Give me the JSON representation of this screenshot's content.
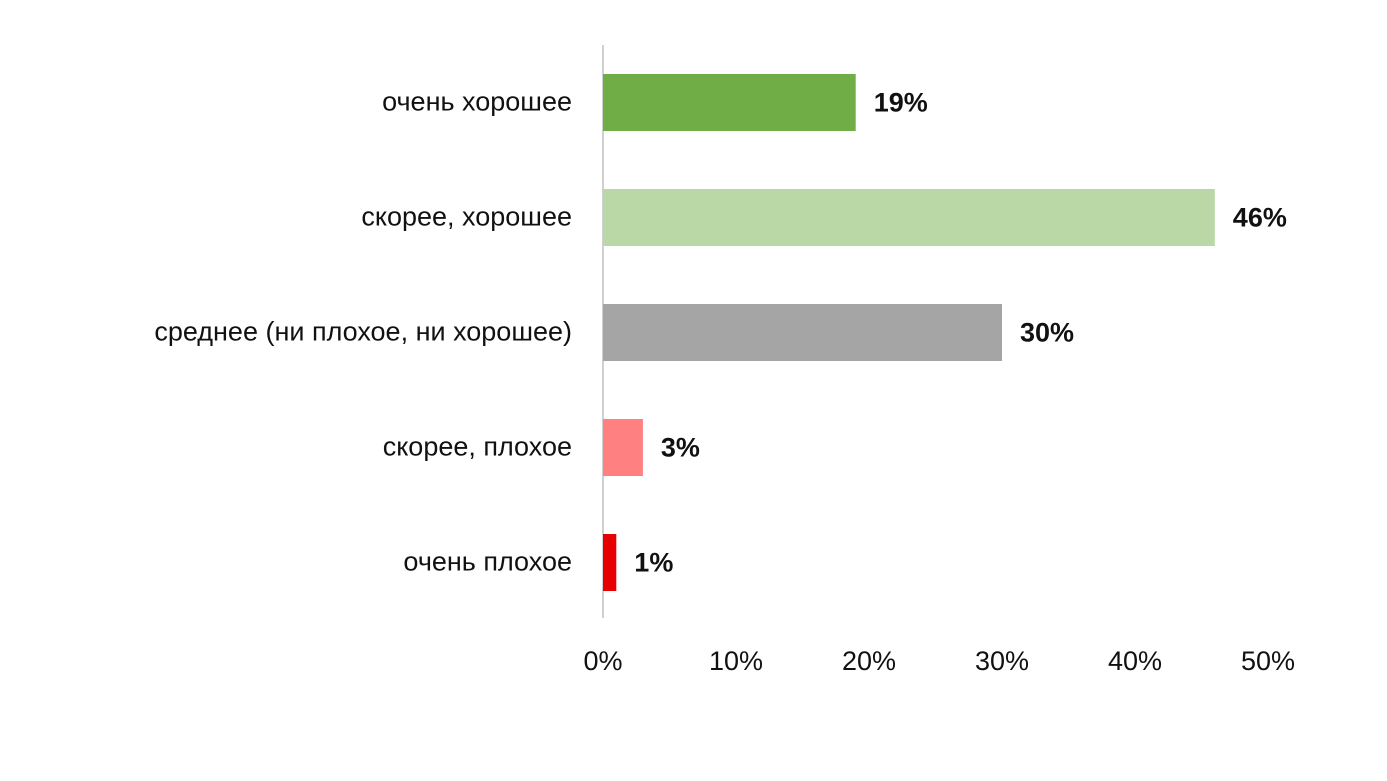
{
  "chart_data": {
    "type": "hbar",
    "categories": [
      "очень хорошее",
      "скорее, хорошее",
      "среднее (ни плохое, ни хорошее)",
      "скорее, плохое",
      "очень плохое"
    ],
    "values": [
      19,
      46,
      30,
      3,
      1
    ],
    "value_labels": [
      "19%",
      "46%",
      "30%",
      "3%",
      "1%"
    ],
    "colors": [
      "#70ad47",
      "#b9d8a6",
      "#a5a5a5",
      "#ff8080",
      "#e60000"
    ],
    "xlim": [
      0,
      50
    ],
    "xticks": [
      {
        "value": 0,
        "label": "0%"
      },
      {
        "value": 10,
        "label": "10%"
      },
      {
        "value": 20,
        "label": "20%"
      },
      {
        "value": 30,
        "label": "30%"
      },
      {
        "value": 40,
        "label": "40%"
      },
      {
        "value": 50,
        "label": "50%"
      }
    ],
    "grid": false
  }
}
